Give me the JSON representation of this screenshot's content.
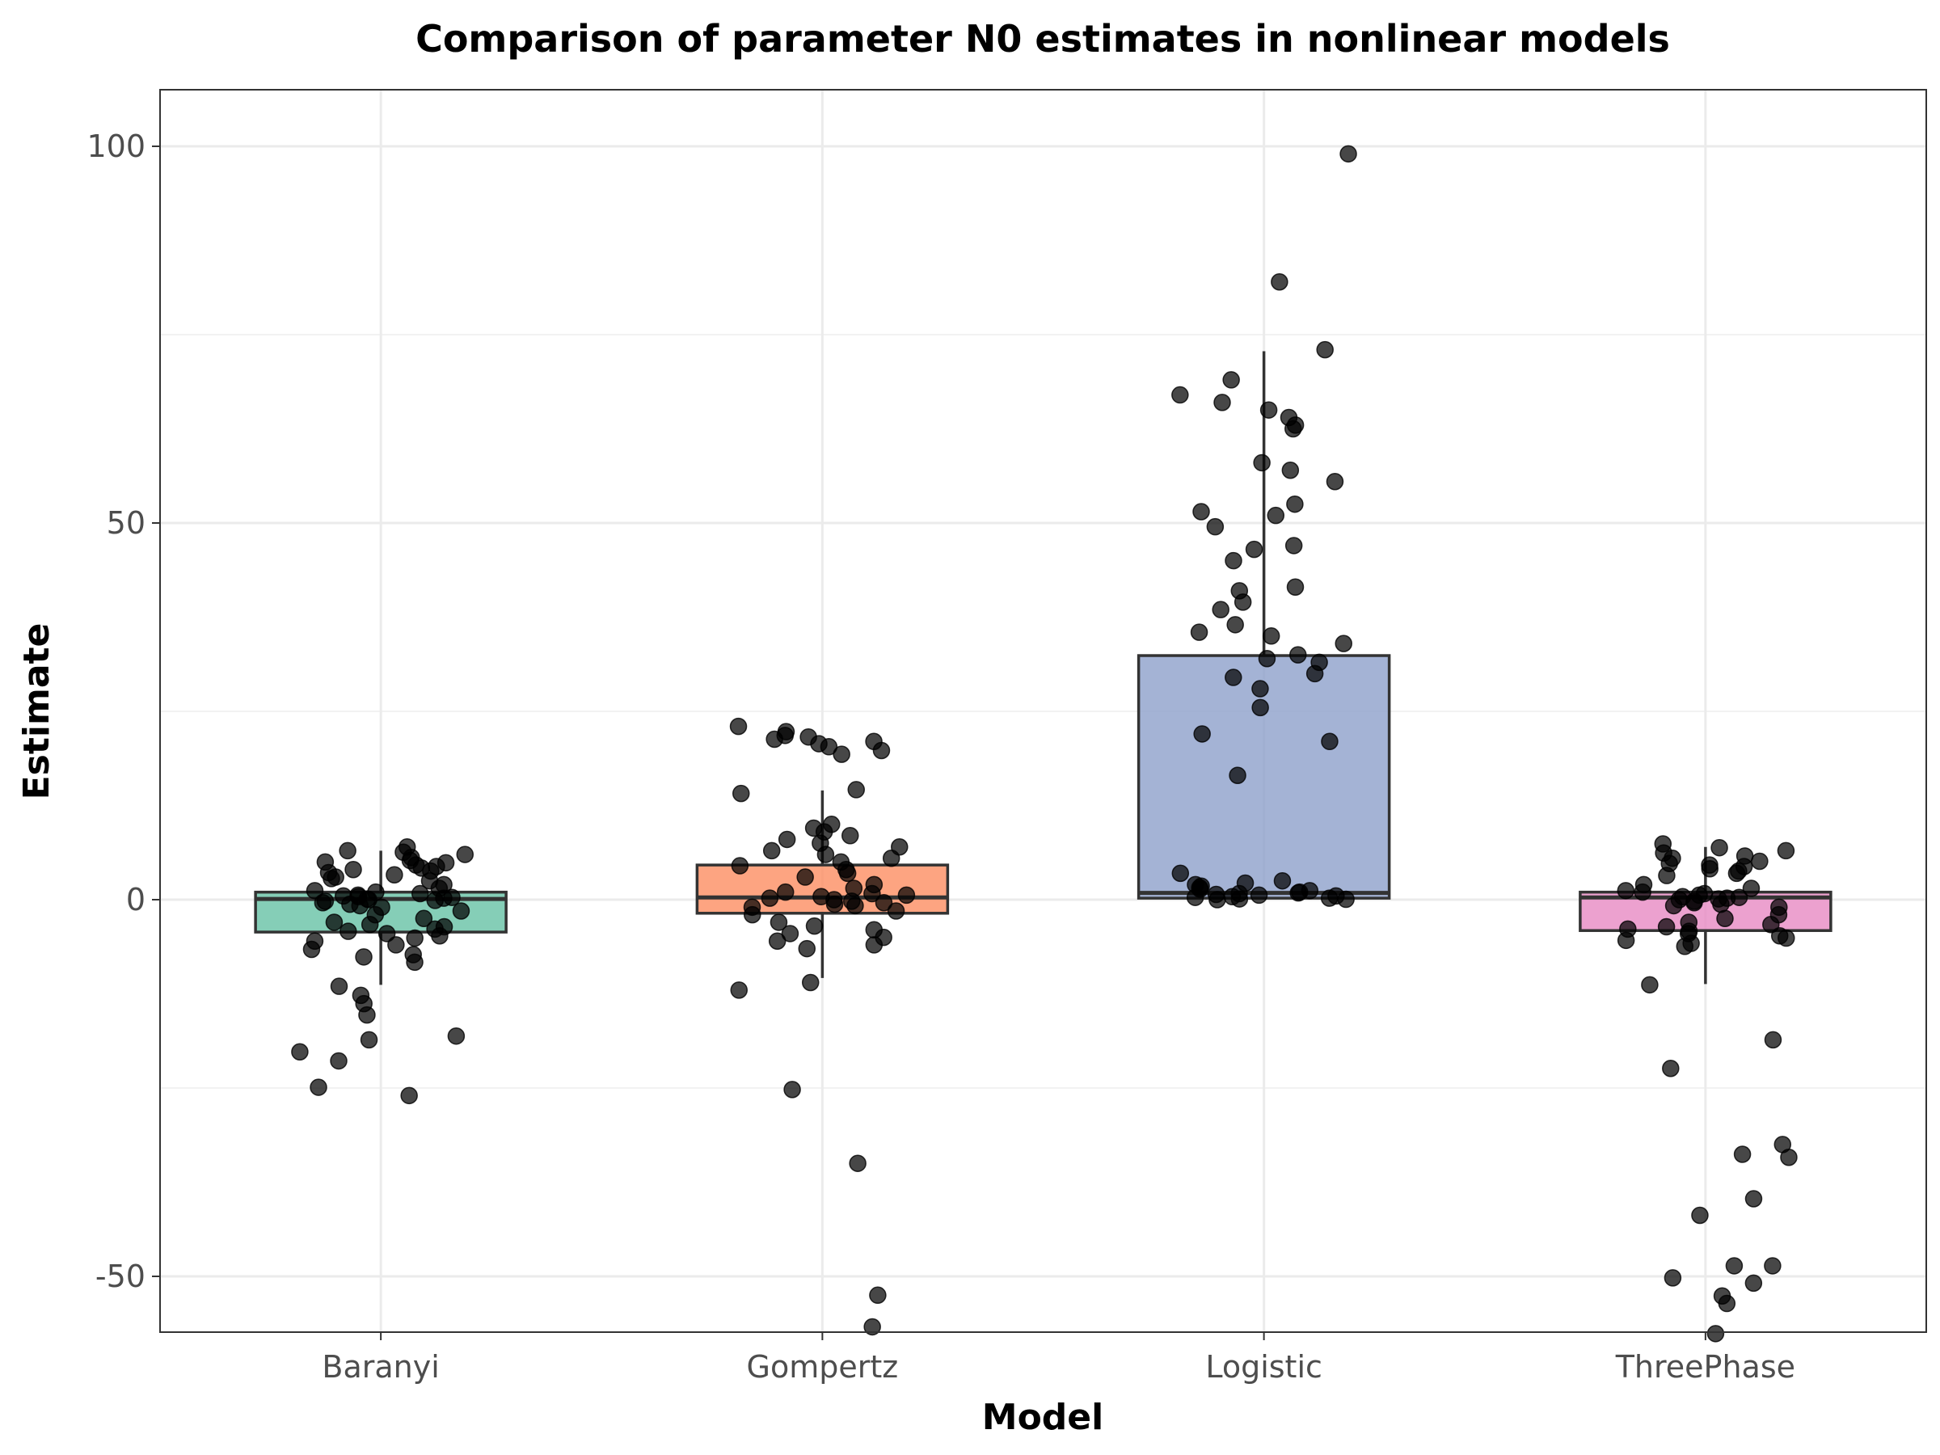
{
  "chart_data": {
    "type": "box",
    "title": "Comparison of parameter N0 estimates in nonlinear models",
    "xlabel": "Model",
    "ylabel": "Estimate",
    "ylim": [
      -57,
      107
    ],
    "yticks": [
      -50,
      0,
      50,
      100
    ],
    "ytick_labels": [
      "-50",
      "0",
      "50",
      "100"
    ],
    "grid": true,
    "legend": "none",
    "categories": [
      "Baranyi",
      "Gompertz",
      "Logistic",
      "ThreePhase"
    ],
    "colors": [
      "#66c2a5",
      "#fc8d62",
      "#8da0cb",
      "#e78ac3"
    ],
    "boxes": [
      {
        "category": "Baranyi",
        "q1": -4.3,
        "median": 0.1,
        "q3": 1.0,
        "whisker_low": -11.3,
        "whisker_high": 6.5
      },
      {
        "category": "Gompertz",
        "q1": -1.8,
        "median": 0.3,
        "q3": 4.6,
        "whisker_low": -10.4,
        "whisker_high": 14.5
      },
      {
        "category": "Logistic",
        "q1": 0.2,
        "median": 0.9,
        "q3": 32.4,
        "whisker_low": 0.0,
        "whisker_high": 72.8
      },
      {
        "category": "ThreePhase",
        "q1": -4.1,
        "median": 0.3,
        "q3": 1.0,
        "whisker_low": -11.2,
        "whisker_high": 7.0
      }
    ],
    "points": [
      {
        "category": "Baranyi",
        "y": [
          7.0,
          6.5,
          6.3,
          6.0,
          5.6,
          5.2,
          5.0,
          4.9,
          4.6,
          4.4,
          4.2,
          4.0,
          3.8,
          3.6,
          3.3,
          3.0,
          2.8,
          2.5,
          2.0,
          1.5,
          1.2,
          1.0,
          0.8,
          0.6,
          0.5,
          0.4,
          0.3,
          0.2,
          0.1,
          0.0,
          -0.1,
          -0.2,
          -0.4,
          -0.6,
          -0.8,
          -1.0,
          -1.5,
          -2.0,
          -2.5,
          -3.0,
          -3.3,
          -3.6,
          -3.9,
          -4.2,
          -4.5,
          -4.8,
          -5.1,
          -5.5,
          -6.0,
          -6.6,
          -7.3,
          -7.6,
          -8.3,
          -11.5,
          -12.7,
          -13.8,
          -15.3,
          -18.1,
          -18.6,
          -20.2,
          -21.4,
          -24.9,
          -26.0
        ]
      },
      {
        "category": "Gompertz",
        "y": [
          23.0,
          22.3,
          21.8,
          21.6,
          21.3,
          21.0,
          20.7,
          20.3,
          19.8,
          19.3,
          14.6,
          14.1,
          10.0,
          9.5,
          9.0,
          8.5,
          8.0,
          7.5,
          7.0,
          6.5,
          6.0,
          5.5,
          5.0,
          4.5,
          4.0,
          3.5,
          3.0,
          2.0,
          1.5,
          1.0,
          0.8,
          0.6,
          0.4,
          0.2,
          0.0,
          -0.2,
          -0.4,
          -0.6,
          -0.8,
          -1.0,
          -1.5,
          -2.0,
          -3.0,
          -3.5,
          -4.0,
          -4.5,
          -5.0,
          -5.5,
          -6.0,
          -6.5,
          -11.0,
          -12.0,
          -25.2,
          -35.0,
          -52.5,
          -56.7
        ]
      },
      {
        "category": "Logistic",
        "y": [
          99.0,
          82.0,
          73.0,
          69.0,
          67.0,
          66.0,
          65.0,
          64.0,
          63.0,
          62.5,
          58.0,
          57.0,
          55.5,
          52.5,
          51.5,
          51.0,
          49.5,
          47.0,
          46.5,
          45.0,
          41.5,
          41.0,
          39.5,
          38.5,
          36.5,
          35.5,
          35.0,
          34.0,
          32.5,
          32.0,
          31.5,
          30.0,
          29.5,
          28.0,
          25.5,
          22.0,
          21.0,
          16.5,
          3.5,
          2.5,
          2.2,
          2.0,
          1.8,
          1.6,
          1.4,
          1.2,
          1.0,
          0.9,
          0.8,
          0.7,
          0.6,
          0.5,
          0.4,
          0.3,
          0.2,
          0.1,
          0.05,
          0.0
        ]
      },
      {
        "category": "ThreePhase",
        "y": [
          7.4,
          6.9,
          6.5,
          6.2,
          5.8,
          5.5,
          5.1,
          4.8,
          4.6,
          4.4,
          4.1,
          3.8,
          3.5,
          3.2,
          2.0,
          1.5,
          1.2,
          1.0,
          0.8,
          0.6,
          0.4,
          0.3,
          0.2,
          0.1,
          0.0,
          -0.2,
          -0.4,
          -0.6,
          -0.8,
          -1.0,
          -2.0,
          -2.5,
          -3.0,
          -3.3,
          -3.6,
          -3.9,
          -4.2,
          -4.5,
          -4.8,
          -5.1,
          -5.4,
          -5.8,
          -6.2,
          -11.3,
          -18.6,
          -22.4,
          -32.5,
          -33.8,
          -34.2,
          -39.7,
          -41.9,
          -48.6,
          -48.6,
          -50.2,
          -50.9,
          -52.6,
          -53.6,
          -57.6
        ]
      }
    ]
  }
}
